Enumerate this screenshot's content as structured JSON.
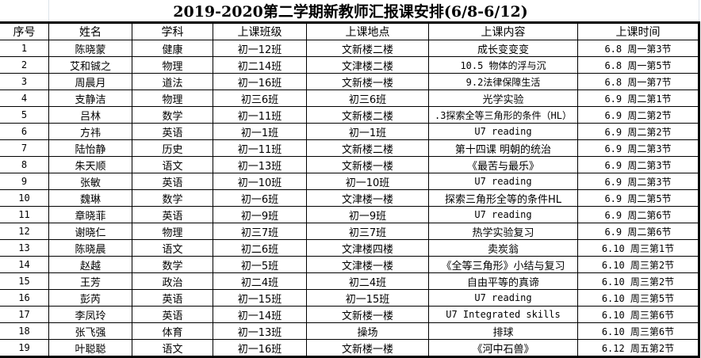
{
  "title": "2019-2020第二学期新教师汇报课安排(6/8-6/12)",
  "headers": [
    "序号",
    "姓名",
    "学科",
    "上课班级",
    "上课地点",
    "上课内容",
    "上课时间"
  ],
  "rows": [
    [
      "1",
      "陈晓蒙",
      "健康",
      "初一12班",
      "文新楼二楼",
      "成长变变变",
      "6.8 周一第3节"
    ],
    [
      "2",
      "艾和铖之",
      "物理",
      "初二14班",
      "文津楼二楼",
      "10.5  物体的浮与沉",
      "6.8 周一第5节"
    ],
    [
      "3",
      "周晨月",
      "道法",
      "初一16班",
      "文新楼一楼",
      "9.2法律保障生活",
      "6.8 周一第7节"
    ],
    [
      "4",
      "支静洁",
      "物理",
      "初三6班",
      "初三6班",
      "光学实验",
      "6.9 周二第1节"
    ],
    [
      "5",
      "吕林",
      "数学",
      "初一11班",
      "文新楼二楼",
      ".3探索全等三角形的条件（HL）",
      "6.9 周二第2节"
    ],
    [
      "6",
      "方祎",
      "英语",
      "初一1班",
      "初一1班",
      "U7 reading",
      "6.9 周二第2节"
    ],
    [
      "7",
      "陆怡静",
      "历史",
      "初一11班",
      "文新楼二楼",
      "第十四课 明朝的统治",
      "6.9 周二第3节"
    ],
    [
      "8",
      "朱天顺",
      "语文",
      "初一13班",
      "文新楼一楼",
      "《最苦与最乐》",
      "6.9 周二第3节"
    ],
    [
      "9",
      "张敏",
      "英语",
      "初一10班",
      "初一10班",
      "U7 reading",
      "6.9 周二第3节"
    ],
    [
      "10",
      "魏琳",
      "数学",
      "初一6班",
      "文津楼一楼",
      "探索三角形全等的条件HL",
      "6.9 周二第5节"
    ],
    [
      "11",
      "章晓菲",
      "英语",
      "初一9班",
      "初一9班",
      "U7 reading",
      "6.9 周二第6节"
    ],
    [
      "12",
      "谢晓仁",
      "物理",
      "初三7班",
      "初三7班",
      "热学实验复习",
      "6.9 周二第6节"
    ],
    [
      "13",
      "陈晓晨",
      "语文",
      "初二6班",
      "文津楼四楼",
      "卖炭翁",
      "6.10 周三第1节"
    ],
    [
      "14",
      "赵越",
      "数学",
      "初一5班",
      "文津楼一楼",
      "《全等三角形》小结与复习",
      "6.10 周三第2节"
    ],
    [
      "15",
      "王芳",
      "政治",
      "初二4班",
      "初二4班",
      "自由平等的真谛",
      "6.10 周三第2节"
    ],
    [
      "16",
      "彭芮",
      "英语",
      "初一15班",
      "初一15班",
      "U7 reading",
      "6.10 周三第5节"
    ],
    [
      "17",
      "李凤玲",
      "英语",
      "初一14班",
      "文新楼一楼",
      "U7 Integrated skills",
      "6.10 周三第6节"
    ],
    [
      "18",
      "张飞强",
      "体育",
      "初一13班",
      "操场",
      "排球",
      "6.10 周三第6节"
    ],
    [
      "19",
      "叶聪聪",
      "语文",
      "初一16班",
      "文新楼一楼",
      "《河中石兽》",
      "6.12 周五第2节"
    ]
  ]
}
